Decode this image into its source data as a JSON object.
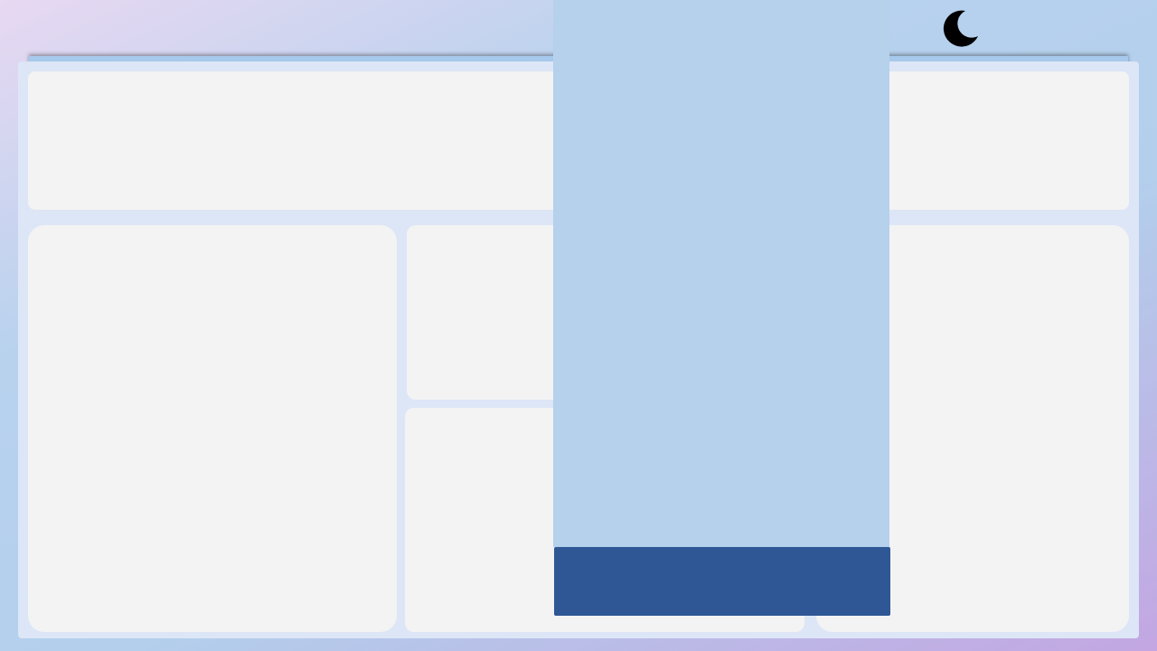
{
  "theme_toggle": {
    "icon": "moon-icon"
  },
  "colors": {
    "dashboard_bg": "#dde6f6",
    "card_bg": "#f3f3f3",
    "overlay_panel": "#b5d1ec",
    "overlay_footer": "#2f5796"
  }
}
